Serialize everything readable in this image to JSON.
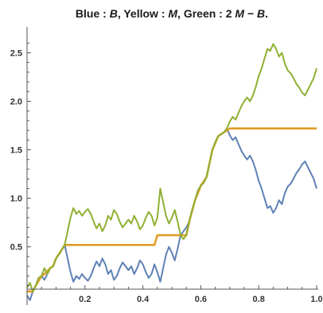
{
  "chart_data": {
    "type": "line",
    "title": {
      "full": "Blue : B, Yellow : M, Green : 2 M − B.",
      "parts": [
        {
          "text": "Blue : ",
          "italic": false
        },
        {
          "text": "B",
          "italic": true
        },
        {
          "text": ", Yellow : ",
          "italic": false
        },
        {
          "text": "M",
          "italic": true
        },
        {
          "text": ", Green : 2 ",
          "italic": false
        },
        {
          "text": "M",
          "italic": true
        },
        {
          "text": " − ",
          "italic": false
        },
        {
          "text": "B",
          "italic": true
        },
        {
          "text": ".",
          "italic": false
        }
      ]
    },
    "xlabel": "",
    "ylabel": "",
    "xlim": [
      0,
      1.0
    ],
    "ylim": [
      -0.1,
      2.7
    ],
    "x_ticks": [
      0.2,
      0.4,
      0.6,
      0.8,
      1.0
    ],
    "x_tick_labels": [
      "0.2",
      "0.4",
      "0.6",
      "0.8",
      "1.0"
    ],
    "y_ticks": [
      0.5,
      1.0,
      1.5,
      2.0,
      2.5
    ],
    "y_tick_labels": [
      "0.5",
      "1.0",
      "1.5",
      "2.0",
      "2.5"
    ],
    "grid": false,
    "legend": "none",
    "series": [
      {
        "color": "#5e81b5",
        "x": [
          0,
          0.01,
          0.02,
          0.03,
          0.04,
          0.05,
          0.06,
          0.07,
          0.08,
          0.09,
          0.1,
          0.11,
          0.12,
          0.13,
          0.14,
          0.15,
          0.16,
          0.17,
          0.18,
          0.19,
          0.2,
          0.21,
          0.22,
          0.23,
          0.24,
          0.25,
          0.26,
          0.27,
          0.28,
          0.29,
          0.3,
          0.31,
          0.32,
          0.33,
          0.34,
          0.35,
          0.36,
          0.37,
          0.38,
          0.39,
          0.4,
          0.41,
          0.42,
          0.43,
          0.44,
          0.45,
          0.46,
          0.47,
          0.48,
          0.49,
          0.5,
          0.51,
          0.52,
          0.53,
          0.54,
          0.55,
          0.56,
          0.57,
          0.58,
          0.59,
          0.6,
          0.61,
          0.62,
          0.63,
          0.64,
          0.65,
          0.66,
          0.67,
          0.68,
          0.69,
          0.7,
          0.71,
          0.72,
          0.73,
          0.74,
          0.75,
          0.76,
          0.77,
          0.78,
          0.79,
          0.8,
          0.81,
          0.82,
          0.83,
          0.84,
          0.85,
          0.86,
          0.87,
          0.88,
          0.89,
          0.9,
          0.91,
          0.92,
          0.93,
          0.94,
          0.95,
          0.96,
          0.97,
          0.98,
          0.99,
          1.0
        ],
        "y": [
          0.0,
          -0.05,
          0.04,
          0.1,
          0.18,
          0.2,
          0.16,
          0.22,
          0.28,
          0.3,
          0.38,
          0.42,
          0.47,
          0.52,
          0.38,
          0.24,
          0.14,
          0.2,
          0.17,
          0.22,
          0.18,
          0.15,
          0.2,
          0.28,
          0.35,
          0.3,
          0.38,
          0.32,
          0.22,
          0.26,
          0.16,
          0.2,
          0.28,
          0.34,
          0.3,
          0.26,
          0.3,
          0.22,
          0.28,
          0.36,
          0.32,
          0.24,
          0.18,
          0.22,
          0.32,
          0.24,
          0.14,
          0.28,
          0.42,
          0.5,
          0.44,
          0.36,
          0.48,
          0.62,
          0.66,
          0.7,
          0.76,
          0.88,
          0.98,
          1.08,
          1.13,
          1.16,
          1.22,
          1.36,
          1.5,
          1.58,
          1.64,
          1.66,
          1.68,
          1.72,
          1.65,
          1.6,
          1.63,
          1.56,
          1.49,
          1.44,
          1.4,
          1.44,
          1.38,
          1.29,
          1.18,
          1.1,
          1.0,
          0.9,
          0.92,
          0.85,
          0.9,
          0.98,
          0.94,
          1.05,
          1.12,
          1.15,
          1.2,
          1.26,
          1.3,
          1.35,
          1.38,
          1.32,
          1.26,
          1.2,
          1.1
        ]
      },
      {
        "color": "#e19c24",
        "x": [
          0,
          0.02,
          0.03,
          0.05,
          0.06,
          0.08,
          0.09,
          0.1,
          0.12,
          0.13,
          0.15,
          0.2,
          0.3,
          0.4,
          0.44,
          0.45,
          0.5,
          0.55,
          0.56,
          0.58,
          0.6,
          0.62,
          0.64,
          0.66,
          0.68,
          0.69,
          0.7,
          0.72,
          0.8,
          0.9,
          1.0
        ],
        "y": [
          0.04,
          0.04,
          0.1,
          0.2,
          0.22,
          0.28,
          0.3,
          0.38,
          0.47,
          0.52,
          0.52,
          0.52,
          0.52,
          0.52,
          0.52,
          0.62,
          0.62,
          0.62,
          0.76,
          0.98,
          1.13,
          1.22,
          1.5,
          1.64,
          1.68,
          1.7,
          1.72,
          1.72,
          1.72,
          1.72,
          1.72
        ]
      },
      {
        "color": "#8fb032",
        "x": [
          0,
          0.01,
          0.02,
          0.03,
          0.04,
          0.05,
          0.06,
          0.07,
          0.08,
          0.09,
          0.1,
          0.11,
          0.12,
          0.13,
          0.14,
          0.15,
          0.16,
          0.17,
          0.18,
          0.19,
          0.2,
          0.21,
          0.22,
          0.23,
          0.24,
          0.25,
          0.26,
          0.27,
          0.28,
          0.29,
          0.3,
          0.31,
          0.32,
          0.33,
          0.34,
          0.35,
          0.36,
          0.37,
          0.38,
          0.39,
          0.4,
          0.41,
          0.42,
          0.43,
          0.44,
          0.45,
          0.46,
          0.47,
          0.48,
          0.49,
          0.5,
          0.51,
          0.52,
          0.53,
          0.54,
          0.55,
          0.56,
          0.57,
          0.58,
          0.59,
          0.6,
          0.61,
          0.62,
          0.63,
          0.64,
          0.65,
          0.66,
          0.67,
          0.68,
          0.69,
          0.7,
          0.71,
          0.72,
          0.73,
          0.74,
          0.75,
          0.76,
          0.77,
          0.78,
          0.79,
          0.8,
          0.81,
          0.82,
          0.83,
          0.84,
          0.85,
          0.86,
          0.87,
          0.88,
          0.89,
          0.9,
          0.91,
          0.92,
          0.93,
          0.94,
          0.95,
          0.96,
          0.97,
          0.98,
          0.99,
          1.0
        ],
        "y": [
          0.08,
          0.13,
          0.04,
          0.1,
          0.18,
          0.2,
          0.28,
          0.22,
          0.28,
          0.3,
          0.38,
          0.42,
          0.47,
          0.52,
          0.66,
          0.8,
          0.9,
          0.84,
          0.87,
          0.82,
          0.86,
          0.89,
          0.84,
          0.76,
          0.69,
          0.74,
          0.66,
          0.72,
          0.82,
          0.78,
          0.88,
          0.84,
          0.76,
          0.7,
          0.74,
          0.78,
          0.74,
          0.82,
          0.76,
          0.68,
          0.72,
          0.8,
          0.86,
          0.82,
          0.72,
          0.8,
          1.1,
          0.96,
          0.82,
          0.74,
          0.8,
          0.88,
          0.76,
          0.62,
          0.58,
          0.62,
          0.76,
          0.88,
          0.98,
          1.08,
          1.13,
          1.16,
          1.22,
          1.36,
          1.5,
          1.58,
          1.64,
          1.66,
          1.68,
          1.72,
          1.79,
          1.84,
          1.81,
          1.88,
          1.95,
          2.0,
          2.04,
          2.0,
          2.06,
          2.15,
          2.26,
          2.34,
          2.44,
          2.54,
          2.52,
          2.59,
          2.54,
          2.46,
          2.5,
          2.39,
          2.32,
          2.29,
          2.24,
          2.18,
          2.14,
          2.09,
          2.06,
          2.12,
          2.18,
          2.24,
          2.34
        ]
      }
    ]
  }
}
